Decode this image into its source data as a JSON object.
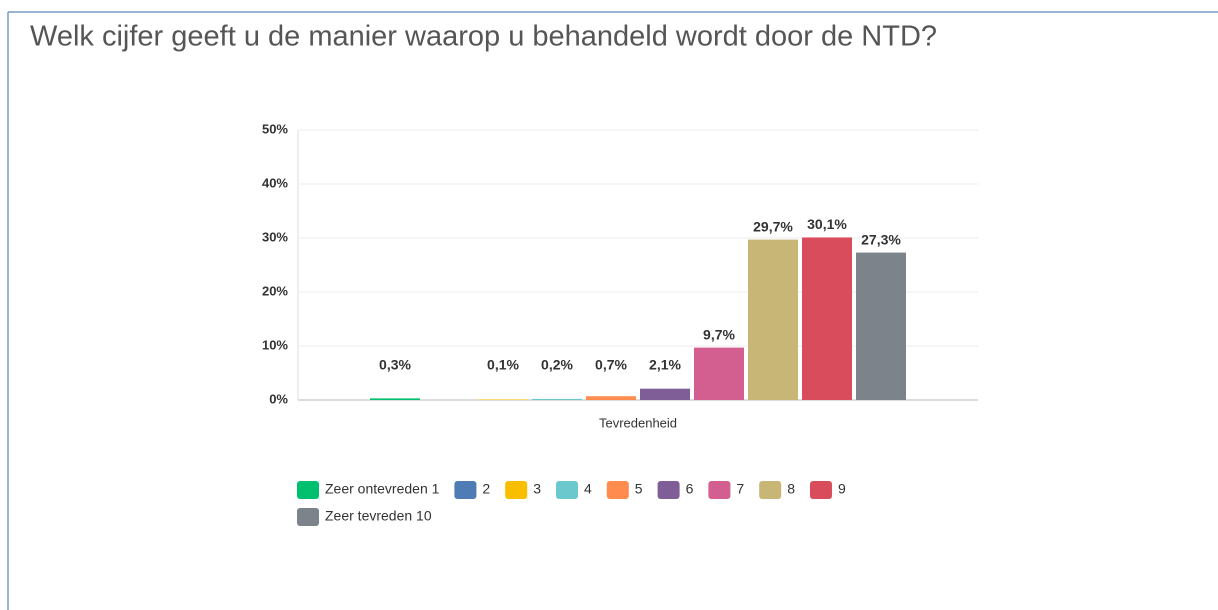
{
  "chart_data": {
    "type": "bar",
    "title": "Welk cijfer geeft u de manier waarop u behandeld wordt door de NTD?",
    "categories": [
      "Tevredenheid"
    ],
    "series": [
      {
        "name": "Zeer ontevreden 1",
        "color": "#00bf6f",
        "values": [
          0.3
        ],
        "value_labels": [
          "0,3%"
        ]
      },
      {
        "name": "2",
        "color": "#507cb6",
        "values": [
          0
        ],
        "value_labels": [
          null
        ]
      },
      {
        "name": "3",
        "color": "#f9be00",
        "values": [
          0.1
        ],
        "value_labels": [
          "0,1%"
        ]
      },
      {
        "name": "4",
        "color": "#6bc8cd",
        "values": [
          0.2
        ],
        "value_labels": [
          "0,2%"
        ]
      },
      {
        "name": "5",
        "color": "#ff8b4f",
        "values": [
          0.7
        ],
        "value_labels": [
          "0,7%"
        ]
      },
      {
        "name": "6",
        "color": "#7f5e98",
        "values": [
          2.1
        ],
        "value_labels": [
          "2,1%"
        ]
      },
      {
        "name": "7",
        "color": "#d25f90",
        "values": [
          9.7
        ],
        "value_labels": [
          "9,7%"
        ]
      },
      {
        "name": "8",
        "color": "#c8b677",
        "values": [
          29.7
        ],
        "value_labels": [
          "29,7%"
        ]
      },
      {
        "name": "9",
        "color": "#d94c5b",
        "values": [
          30.1
        ],
        "value_labels": [
          "30,1%"
        ]
      },
      {
        "name": "Zeer tevreden 10",
        "color": "#7d838b",
        "values": [
          27.3
        ],
        "value_labels": [
          "27,3%"
        ]
      }
    ],
    "ylim": [
      0,
      50
    ],
    "yticks": [
      {
        "value": 0,
        "label": "0%"
      },
      {
        "value": 10,
        "label": "10%"
      },
      {
        "value": 20,
        "label": "20%"
      },
      {
        "value": 30,
        "label": "30%"
      },
      {
        "value": 40,
        "label": "40%"
      },
      {
        "value": 50,
        "label": "50%"
      }
    ],
    "grid": true,
    "legend": "bottom"
  }
}
